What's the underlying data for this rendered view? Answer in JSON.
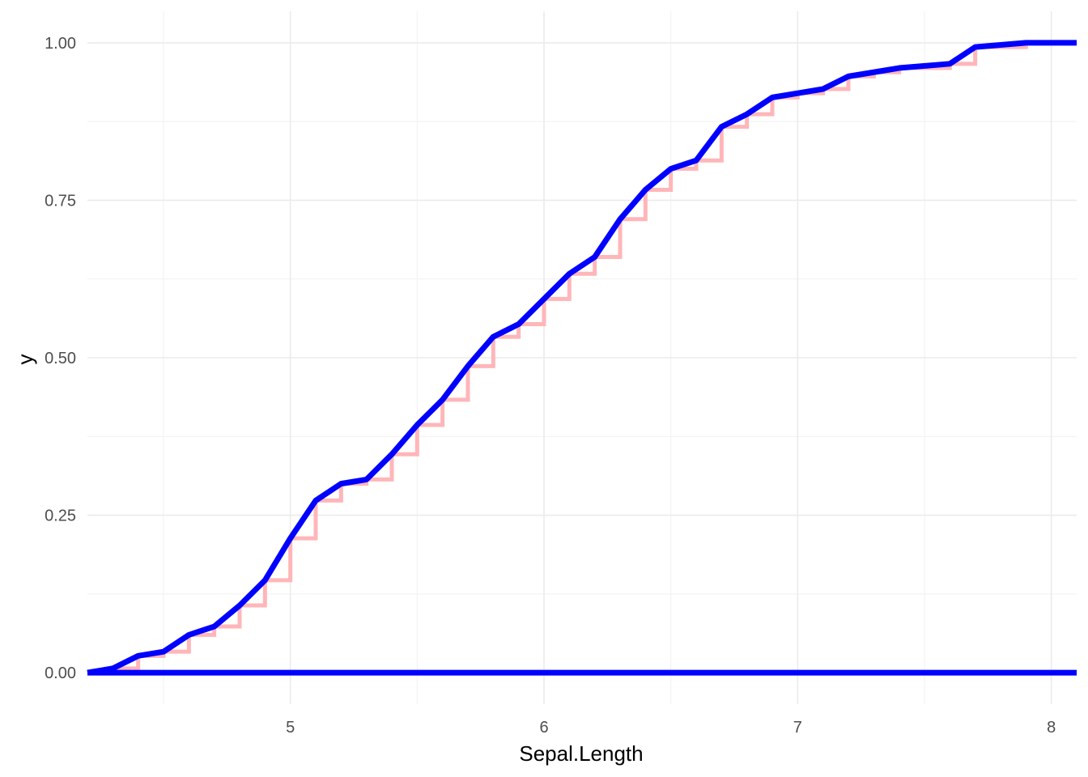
{
  "chart_data": {
    "type": "line",
    "title": "",
    "xlabel": "Sepal.Length",
    "ylabel": "y",
    "xlim": [
      4.2,
      8.1
    ],
    "ylim": [
      -0.05,
      1.05
    ],
    "x_ticks": [
      5,
      6,
      7,
      8
    ],
    "x_tick_labels": [
      "5",
      "6",
      "7",
      "8"
    ],
    "y_ticks": [
      0,
      0.25,
      0.5,
      0.75,
      1
    ],
    "y_tick_labels": [
      "0.00",
      "0.25",
      "0.50",
      "0.75",
      "1.00"
    ],
    "grid": true,
    "legend": "none",
    "colors": {
      "step": "#ffb6b9",
      "line": "#0000ff",
      "baseline": "#0000ff"
    },
    "x": [
      4.3,
      4.4,
      4.5,
      4.6,
      4.7,
      4.8,
      4.9,
      5.0,
      5.1,
      5.2,
      5.3,
      5.4,
      5.5,
      5.6,
      5.7,
      5.8,
      5.9,
      6.0,
      6.1,
      6.2,
      6.3,
      6.4,
      6.5,
      6.6,
      6.7,
      6.8,
      6.9,
      7.0,
      7.1,
      7.2,
      7.3,
      7.4,
      7.6,
      7.7,
      7.9
    ],
    "ecdf": [
      0.0067,
      0.0267,
      0.0333,
      0.06,
      0.0733,
      0.1067,
      0.1467,
      0.2133,
      0.2733,
      0.3,
      0.3067,
      0.3467,
      0.3933,
      0.4333,
      0.4867,
      0.5333,
      0.5533,
      0.5933,
      0.6333,
      0.66,
      0.72,
      0.7667,
      0.8,
      0.8133,
      0.8667,
      0.8867,
      0.9133,
      0.92,
      0.9267,
      0.9467,
      0.9533,
      0.96,
      0.9667,
      0.9933,
      1.0
    ],
    "series": [
      {
        "kind": "step"
      },
      {
        "kind": "line"
      },
      {
        "kind": "baseline",
        "y": 0
      }
    ]
  }
}
